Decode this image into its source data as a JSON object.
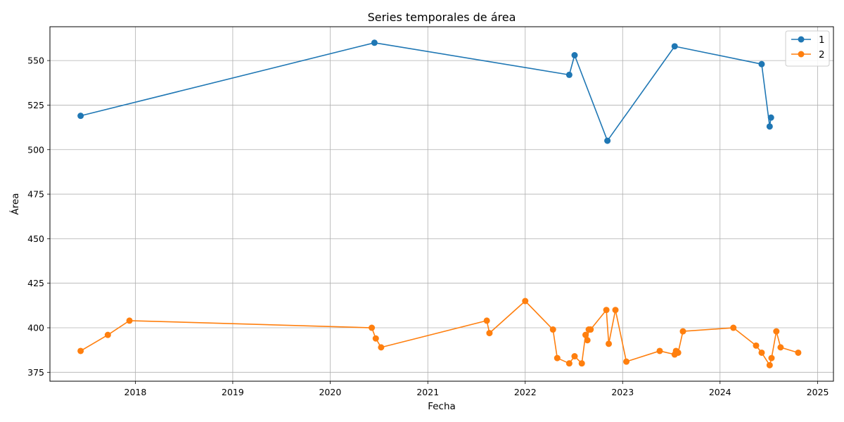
{
  "chart_data": {
    "type": "line",
    "title": "Series temporales de área",
    "xlabel": "Fecha",
    "ylabel": "Área",
    "grid": true,
    "legend_position": "top-right",
    "xlim": [
      "2017-02-15",
      "2025-03-01"
    ],
    "ylim": [
      370,
      569
    ],
    "x_ticks": [
      "2018-01-01",
      "2019-01-01",
      "2020-01-01",
      "2021-01-01",
      "2022-01-01",
      "2023-01-01",
      "2024-01-01",
      "2025-01-01"
    ],
    "x_tick_labels": [
      "2018",
      "2019",
      "2020",
      "2021",
      "2022",
      "2023",
      "2024",
      "2025"
    ],
    "y_ticks": [
      375,
      400,
      425,
      450,
      475,
      500,
      525,
      550
    ],
    "y_tick_labels": [
      "375",
      "400",
      "425",
      "450",
      "475",
      "500",
      "525",
      "550"
    ],
    "series": [
      {
        "name": "1",
        "color": "#1f77b4",
        "points": [
          {
            "x": "2017-06-10",
            "y": 519
          },
          {
            "x": "2020-06-15",
            "y": 560
          },
          {
            "x": "2022-06-15",
            "y": 542
          },
          {
            "x": "2022-07-05",
            "y": 553
          },
          {
            "x": "2022-11-05",
            "y": 505
          },
          {
            "x": "2023-07-15",
            "y": 558
          },
          {
            "x": "2024-06-05",
            "y": 548
          },
          {
            "x": "2024-07-05",
            "y": 513
          },
          {
            "x": "2024-07-10",
            "y": 518
          }
        ]
      },
      {
        "name": "2",
        "color": "#ff7f0e",
        "points": [
          {
            "x": "2017-06-10",
            "y": 387
          },
          {
            "x": "2017-09-20",
            "y": 396
          },
          {
            "x": "2017-12-10",
            "y": 404
          },
          {
            "x": "2020-06-05",
            "y": 400
          },
          {
            "x": "2020-06-20",
            "y": 394
          },
          {
            "x": "2020-07-10",
            "y": 389
          },
          {
            "x": "2021-08-10",
            "y": 404
          },
          {
            "x": "2021-08-20",
            "y": 397
          },
          {
            "x": "2022-01-01",
            "y": 415
          },
          {
            "x": "2022-04-15",
            "y": 399
          },
          {
            "x": "2022-05-01",
            "y": 383
          },
          {
            "x": "2022-06-15",
            "y": 380
          },
          {
            "x": "2022-07-05",
            "y": 384
          },
          {
            "x": "2022-08-01",
            "y": 380
          },
          {
            "x": "2022-08-15",
            "y": 396
          },
          {
            "x": "2022-08-22",
            "y": 393
          },
          {
            "x": "2022-08-27",
            "y": 399
          },
          {
            "x": "2022-09-03",
            "y": 399
          },
          {
            "x": "2022-11-01",
            "y": 410
          },
          {
            "x": "2022-11-10",
            "y": 391
          },
          {
            "x": "2022-12-05",
            "y": 410
          },
          {
            "x": "2023-01-15",
            "y": 381
          },
          {
            "x": "2023-05-20",
            "y": 387
          },
          {
            "x": "2023-07-15",
            "y": 385
          },
          {
            "x": "2023-07-20",
            "y": 387
          },
          {
            "x": "2023-07-28",
            "y": 386
          },
          {
            "x": "2023-08-15",
            "y": 398
          },
          {
            "x": "2024-02-20",
            "y": 400
          },
          {
            "x": "2024-05-15",
            "y": 390
          },
          {
            "x": "2024-06-05",
            "y": 386
          },
          {
            "x": "2024-07-05",
            "y": 379
          },
          {
            "x": "2024-07-12",
            "y": 383
          },
          {
            "x": "2024-07-30",
            "y": 398
          },
          {
            "x": "2024-08-15",
            "y": 389
          },
          {
            "x": "2024-10-20",
            "y": 386
          }
        ]
      }
    ]
  }
}
